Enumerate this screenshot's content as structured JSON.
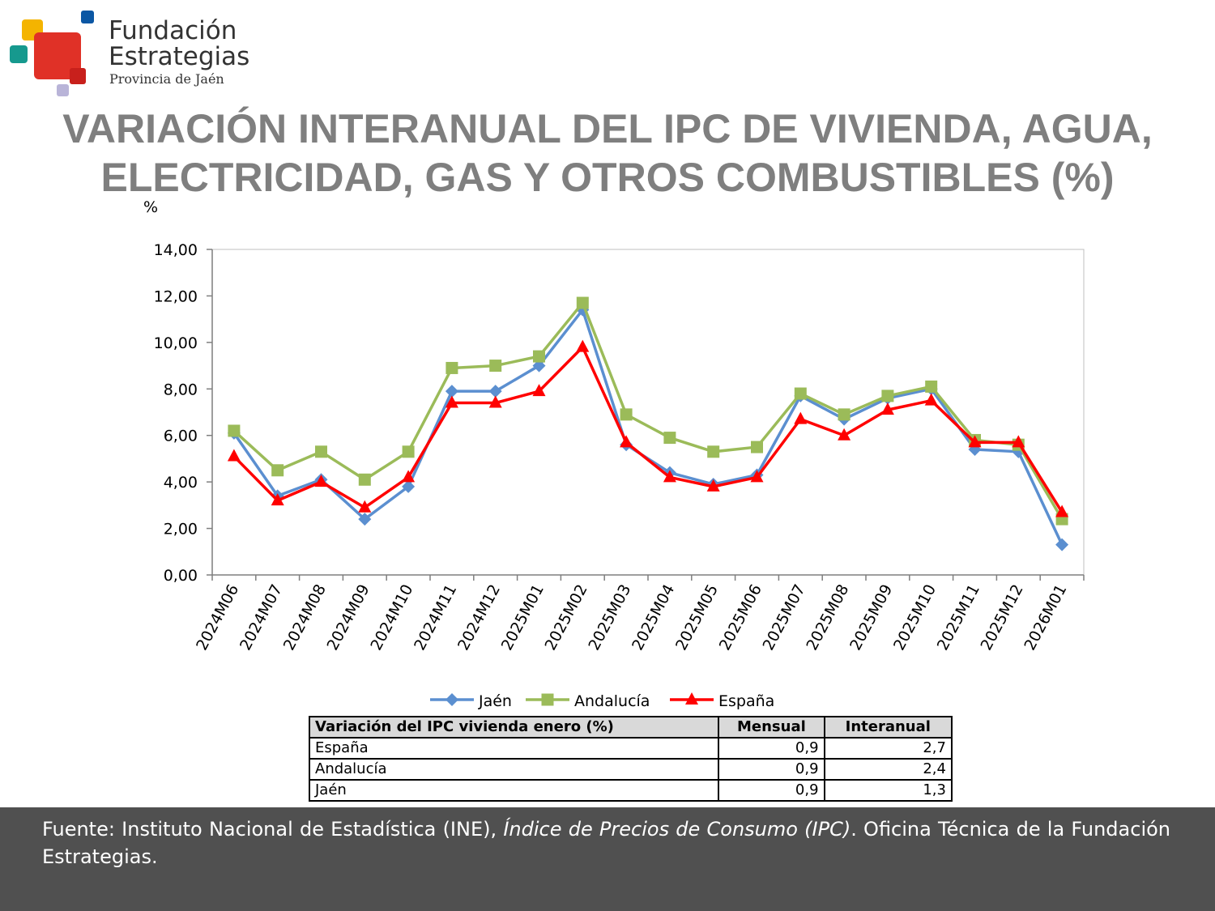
{
  "logo": {
    "line1": "Fundación",
    "line2": "Estrategias",
    "line3": "Provincia de Jaén"
  },
  "chart_data": {
    "type": "line",
    "title": [
      "VARIACIÓN INTERANUAL DEL IPC DE VIVIENDA, AGUA,",
      "ELECTRICIDAD, GAS Y OTROS COMBUSTIBLES (%)"
    ],
    "y_label": "%",
    "categories": [
      "2024M06",
      "2024M07",
      "2024M08",
      "2024M09",
      "2024M10",
      "2024M11",
      "2024M12",
      "2025M01",
      "2025M02",
      "2025M03",
      "2025M04",
      "2025M05",
      "2025M06",
      "2025M07",
      "2025M08",
      "2025M09",
      "2025M10",
      "2025M11",
      "2025M12",
      "2026M01"
    ],
    "series": [
      {
        "name": "Jaén",
        "color": "#5b8fd0",
        "marker": "diamond",
        "values": [
          6.1,
          3.4,
          4.1,
          2.4,
          3.8,
          7.9,
          7.9,
          9.0,
          11.4,
          5.6,
          4.4,
          3.9,
          4.3,
          7.7,
          6.7,
          7.6,
          8.0,
          5.4,
          5.3,
          1.3
        ]
      },
      {
        "name": "Andalucía",
        "color": "#9bbb59",
        "marker": "square",
        "values": [
          6.2,
          4.5,
          5.3,
          4.1,
          5.3,
          8.9,
          9.0,
          9.4,
          11.7,
          6.9,
          5.9,
          5.3,
          5.5,
          7.8,
          6.9,
          7.7,
          8.1,
          5.8,
          5.6,
          2.4
        ]
      },
      {
        "name": "España",
        "color": "#ff0000",
        "marker": "triangle",
        "values": [
          5.1,
          3.2,
          4.0,
          2.9,
          4.2,
          7.4,
          7.4,
          7.9,
          9.8,
          5.7,
          4.2,
          3.8,
          4.2,
          6.7,
          6.0,
          7.1,
          7.5,
          5.7,
          5.7,
          2.7
        ]
      }
    ],
    "ylim": [
      0,
      14
    ],
    "yticks": [
      {
        "value": 0,
        "label": "0,00"
      },
      {
        "value": 2,
        "label": "2,00"
      },
      {
        "value": 4,
        "label": "4,00"
      },
      {
        "value": 6,
        "label": "6,00"
      },
      {
        "value": 8,
        "label": "8,00"
      },
      {
        "value": 10,
        "label": "10,00"
      },
      {
        "value": 12,
        "label": "12,00"
      },
      {
        "value": 14,
        "label": "14,00"
      }
    ],
    "grid": false,
    "legend": "bottom"
  },
  "table": {
    "header": [
      "Variación del IPC vivienda enero (%)",
      "Mensual",
      "Interanual"
    ],
    "rows": [
      [
        "España",
        "0,9",
        "2,7"
      ],
      [
        "Andalucía",
        "0,9",
        "2,4"
      ],
      [
        "Jaén",
        "0,9",
        "1,3"
      ]
    ]
  },
  "source": {
    "part1": "Fuente: Instituto Nacional de Estadística (INE), ",
    "part2": "Índice de Precios de Consumo (IPC)",
    "part3": ". Oficina Técnica de la Fundación Estrategias."
  }
}
